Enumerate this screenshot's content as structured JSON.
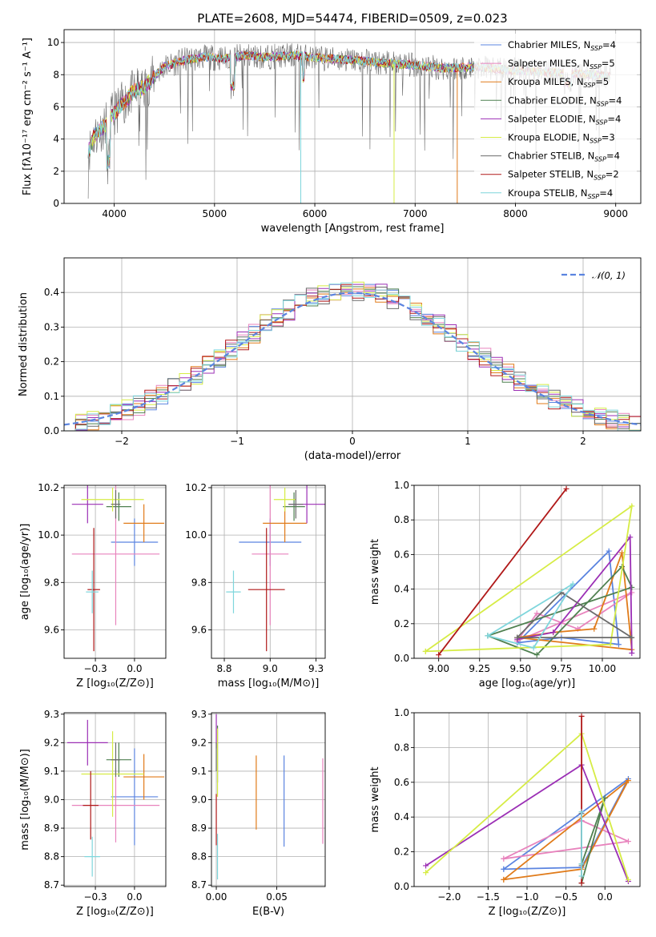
{
  "colors": {
    "Chabrier MILES": "#5b84e0",
    "Salpeter MILES": "#e883bd",
    "Kroupa MILES": "#e07b1a",
    "Chabrier ELODIE": "#4f8050",
    "Salpeter ELODIE": "#9b2fb5",
    "Kroupa ELODIE": "#d6ec45",
    "Chabrier STELIB": "#6b6b6b",
    "Salpeter STELIB": "#b01818",
    "Kroupa STELIB": "#7fd6dc",
    "normal": "#5b84e0"
  },
  "chart_data": [
    {
      "id": "spectrum",
      "type": "line",
      "title": "PLATE=2608, MJD=54474, FIBERID=0509, z=0.023",
      "xlabel": "wavelength [Angstrom, rest frame]",
      "ylabel": "Flux [fλ10⁻¹⁷ erg cm⁻² s⁻¹ A⁻¹]",
      "xlim": [
        3500,
        9250
      ],
      "ylim": [
        0,
        10.8
      ],
      "xticks": [
        4000,
        5000,
        6000,
        7000,
        8000,
        9000
      ],
      "yticks": [
        0,
        2,
        4,
        6,
        8,
        10
      ],
      "continuum": {
        "x": [
          3750,
          3800,
          3900,
          4000,
          4100,
          4200,
          4300,
          4400,
          4500,
          4700,
          4900,
          5100,
          5300,
          5500,
          5800,
          6100,
          6400,
          6700,
          7000,
          7300,
          7600,
          7900,
          8200,
          8500,
          8800,
          8950
        ],
        "y": [
          3.3,
          4.2,
          4.8,
          5.6,
          6.3,
          7.0,
          7.2,
          7.9,
          8.5,
          8.9,
          9.1,
          9.0,
          9.2,
          9.1,
          9.2,
          9.0,
          8.9,
          8.7,
          8.6,
          8.4,
          8.5,
          8.3,
          8.2,
          8.1,
          8.0,
          7.9
        ]
      },
      "legend_position": "upper right",
      "series": [
        {
          "name": "Chabrier MILES",
          "nssp": "4"
        },
        {
          "name": "Salpeter MILES",
          "nssp": "5"
        },
        {
          "name": "Kroupa MILES",
          "nssp": "5"
        },
        {
          "name": "Chabrier ELODIE",
          "nssp": "4"
        },
        {
          "name": "Salpeter ELODIE",
          "nssp": "4"
        },
        {
          "name": "Kroupa ELODIE",
          "nssp": "3"
        },
        {
          "name": "Chabrier STELIB",
          "nssp": "4"
        },
        {
          "name": "Salpeter STELIB",
          "nssp": "2"
        },
        {
          "name": "Kroupa STELIB",
          "nssp": "4"
        }
      ]
    },
    {
      "id": "residuals",
      "type": "bar",
      "xlabel": "(data-model)/error",
      "ylabel": "Normed distribution",
      "xlim": [
        -2.5,
        2.5
      ],
      "ylim": [
        0,
        0.5
      ],
      "xticks": [
        -2,
        -1,
        0,
        1,
        2
      ],
      "yticks": [
        0.0,
        0.1,
        0.2,
        0.3,
        0.4
      ],
      "bin_width": 0.1,
      "legend": "𝒩(0, 1)"
    },
    {
      "id": "age-vs-Z",
      "type": "scatter",
      "xlabel": "Z [log₁₀(Z/Z⊙)]",
      "ylabel": "age  [log₁₀(age/yr)]",
      "xlim": [
        -0.45,
        0.2
      ],
      "ylim": [
        9.48,
        10.21
      ],
      "xticks": [
        -0.25,
        0.0
      ],
      "yticks": [
        9.6,
        9.8,
        10.0,
        10.2
      ],
      "points": [
        {
          "s": "Chabrier MILES",
          "x": 0.0,
          "xerr": 0.15,
          "y": 9.97,
          "yerr": 0.1
        },
        {
          "s": "Salpeter MILES",
          "x": -0.12,
          "xerr": 0.28,
          "y": 9.92,
          "yerr": 0.3
        },
        {
          "s": "Kroupa MILES",
          "x": 0.06,
          "xerr": 0.13,
          "y": 10.05,
          "yerr": 0.08
        },
        {
          "s": "Chabrier ELODIE",
          "x": -0.1,
          "xerr": 0.08,
          "y": 10.12,
          "yerr": 0.06
        },
        {
          "s": "Salpeter ELODIE",
          "x": -0.3,
          "xerr": 0.1,
          "y": 10.13,
          "yerr": 0.08
        },
        {
          "s": "Kroupa ELODIE",
          "x": -0.14,
          "xerr": 0.2,
          "y": 10.15,
          "yerr": 0.05
        },
        {
          "s": "Chabrier STELIB",
          "x": -0.12,
          "xerr": 0.03,
          "y": 10.13,
          "yerr": 0.06
        },
        {
          "s": "Salpeter STELIB",
          "x": -0.26,
          "xerr": 0.04,
          "y": 9.77,
          "yerr": 0.26
        },
        {
          "s": "Kroupa STELIB",
          "x": -0.27,
          "xerr": 0.04,
          "y": 9.76,
          "yerr": 0.09
        }
      ]
    },
    {
      "id": "age-vs-mass",
      "type": "scatter",
      "xlabel": "mass [log₁₀(M/M⊙)]",
      "xlim": [
        8.68,
        9.3
      ],
      "ylim": [
        9.48,
        10.21
      ],
      "xticks": [
        8.75,
        9.0,
        9.25
      ],
      "yticks": [
        9.6,
        9.8,
        10.0,
        10.2
      ],
      "points": [
        {
          "s": "Chabrier MILES",
          "x": 9.0,
          "xerr": 0.17,
          "y": 9.97,
          "yerr": 0.1
        },
        {
          "s": "Salpeter MILES",
          "x": 9.0,
          "xerr": 0.1,
          "y": 9.92,
          "yerr": 0.3
        },
        {
          "s": "Kroupa MILES",
          "x": 9.08,
          "xerr": 0.12,
          "y": 10.05,
          "yerr": 0.08
        },
        {
          "s": "Chabrier ELODIE",
          "x": 9.13,
          "xerr": 0.06,
          "y": 10.12,
          "yerr": 0.06
        },
        {
          "s": "Salpeter ELODIE",
          "x": 9.2,
          "xerr": 0.1,
          "y": 10.13,
          "yerr": 0.08
        },
        {
          "s": "Kroupa ELODIE",
          "x": 9.08,
          "xerr": 0.06,
          "y": 10.15,
          "yerr": 0.05
        },
        {
          "s": "Chabrier STELIB",
          "x": 9.14,
          "xerr": 0.04,
          "y": 10.13,
          "yerr": 0.06
        },
        {
          "s": "Salpeter STELIB",
          "x": 8.98,
          "xerr": 0.1,
          "y": 9.77,
          "yerr": 0.26
        },
        {
          "s": "Kroupa STELIB",
          "x": 8.8,
          "xerr": 0.04,
          "y": 9.76,
          "yerr": 0.09
        }
      ]
    },
    {
      "id": "weight-vs-age",
      "type": "line",
      "xlabel": "age  [log₁₀(age/yr)]",
      "ylabel": "mass weight",
      "xlim": [
        8.85,
        10.23
      ],
      "ylim": [
        0,
        1
      ],
      "xticks": [
        9.0,
        9.25,
        9.5,
        9.75,
        10.0
      ],
      "yticks": [
        0.0,
        0.2,
        0.4,
        0.6,
        0.8,
        1.0
      ],
      "series": [
        {
          "name": "Chabrier MILES",
          "x": [
            9.48,
            9.75,
            10.1,
            10.04,
            9.48
          ],
          "y": [
            0.09,
            0.12,
            0.08,
            0.62,
            0.09
          ]
        },
        {
          "name": "Salpeter MILES",
          "x": [
            9.48,
            9.6,
            9.85,
            10.18,
            9.48
          ],
          "y": [
            0.1,
            0.26,
            0.17,
            0.38,
            0.1
          ]
        },
        {
          "name": "Kroupa MILES",
          "x": [
            9.48,
            9.7,
            9.95,
            10.12,
            10.18,
            9.48
          ],
          "y": [
            0.12,
            0.15,
            0.17,
            0.61,
            0.05,
            0.12
          ]
        },
        {
          "name": "Chabrier ELODIE",
          "x": [
            9.3,
            9.6,
            10.12,
            10.18,
            9.3
          ],
          "y": [
            0.13,
            0.02,
            0.53,
            0.41,
            0.13
          ]
        },
        {
          "name": "Salpeter ELODIE",
          "x": [
            9.48,
            9.7,
            10.17,
            10.18
          ],
          "y": [
            0.11,
            0.15,
            0.7,
            0.03
          ]
        },
        {
          "name": "Kroupa ELODIE",
          "x": [
            8.92,
            10.05,
            10.18,
            8.92
          ],
          "y": [
            0.04,
            0.08,
            0.88,
            0.04
          ]
        },
        {
          "name": "Chabrier STELIB",
          "x": [
            9.48,
            9.75,
            10.18,
            9.48
          ],
          "y": [
            0.12,
            0.38,
            0.12,
            0.12
          ]
        },
        {
          "name": "Salpeter STELIB",
          "x": [
            9.0,
            9.78
          ],
          "y": [
            0.02,
            0.98
          ]
        },
        {
          "name": "Kroupa STELIB",
          "x": [
            9.3,
            9.58,
            9.82,
            9.3
          ],
          "y": [
            0.13,
            0.06,
            0.43,
            0.13
          ]
        }
      ]
    },
    {
      "id": "mass-vs-Z",
      "type": "scatter",
      "xlabel": "Z [log₁₀(Z/Z⊙)]",
      "ylabel": "mass [log₁₀(M/M⊙)]",
      "xlim": [
        -0.45,
        0.2
      ],
      "ylim": [
        8.695,
        9.305
      ],
      "xticks": [
        -0.25,
        0.0
      ],
      "yticks": [
        8.7,
        8.8,
        8.9,
        9.0,
        9.1,
        9.2,
        9.3
      ],
      "points": [
        {
          "s": "Chabrier MILES",
          "x": 0.0,
          "xerr": 0.15,
          "y": 9.01,
          "yerr": 0.17
        },
        {
          "s": "Salpeter MILES",
          "x": -0.12,
          "xerr": 0.28,
          "y": 8.98,
          "yerr": 0.13
        },
        {
          "s": "Kroupa MILES",
          "x": 0.06,
          "xerr": 0.13,
          "y": 9.08,
          "yerr": 0.08
        },
        {
          "s": "Chabrier ELODIE",
          "x": -0.1,
          "xerr": 0.08,
          "y": 9.14,
          "yerr": 0.06
        },
        {
          "s": "Salpeter ELODIE",
          "x": -0.3,
          "xerr": 0.13,
          "y": 9.2,
          "yerr": 0.08
        },
        {
          "s": "Kroupa ELODIE",
          "x": -0.14,
          "xerr": 0.2,
          "y": 9.09,
          "yerr": 0.15
        },
        {
          "s": "Chabrier STELIB",
          "x": -0.12,
          "xerr": 0.03,
          "y": 9.14,
          "yerr": 0.06
        },
        {
          "s": "Salpeter STELIB",
          "x": -0.28,
          "xerr": 0.05,
          "y": 8.98,
          "yerr": 0.12
        },
        {
          "s": "Kroupa STELIB",
          "x": -0.27,
          "xerr": 0.05,
          "y": 8.8,
          "yerr": 0.07
        }
      ]
    },
    {
      "id": "mass-vs-EBV",
      "type": "scatter",
      "xlabel": "E(B-V)",
      "xlim": [
        -0.004,
        0.09
      ],
      "ylim": [
        8.695,
        9.305
      ],
      "xticks": [
        0.0,
        0.05
      ],
      "yticks": [
        8.7,
        8.8,
        8.9,
        9.0,
        9.1,
        9.2,
        9.3
      ],
      "points": [
        {
          "s": "Chabrier MILES",
          "x": 0.056,
          "y": 8.995,
          "yerr": 0.16
        },
        {
          "s": "Salpeter MILES",
          "x": 0.088,
          "y": 8.995,
          "yerr": 0.15
        },
        {
          "s": "Kroupa MILES",
          "x": 0.033,
          "y": 9.025,
          "yerr": 0.13
        },
        {
          "s": "Chabrier ELODIE",
          "x": 0.001,
          "y": 9.16,
          "yerr": 0.1
        },
        {
          "s": "Salpeter ELODIE",
          "x": 0.0,
          "y": 9.24,
          "yerr": 0.06
        },
        {
          "s": "Kroupa ELODIE",
          "x": 0.001,
          "y": 9.13,
          "yerr": 0.12
        },
        {
          "s": "Chabrier STELIB",
          "x": 0.0,
          "y": 9.15,
          "yerr": 0.05
        },
        {
          "s": "Salpeter STELIB",
          "x": 0.0,
          "y": 8.93,
          "yerr": 0.09
        },
        {
          "s": "Kroupa STELIB",
          "x": 0.001,
          "y": 8.8,
          "yerr": 0.08
        }
      ]
    },
    {
      "id": "weight-vs-Z",
      "type": "line",
      "xlabel": "Z [log₁₀(Z/Z⊙)]",
      "ylabel": "mass weight",
      "xlim": [
        -2.45,
        0.45
      ],
      "ylim": [
        0,
        1
      ],
      "xticks": [
        -2.0,
        -1.5,
        -1.0,
        -0.5,
        0.0
      ],
      "yticks": [
        0.0,
        0.2,
        0.4,
        0.6,
        0.8,
        1.0
      ],
      "series": [
        {
          "name": "Chabrier MILES",
          "x": [
            -1.3,
            -0.3,
            0.3,
            -1.3
          ],
          "y": [
            0.1,
            0.11,
            0.62,
            0.1
          ]
        },
        {
          "name": "Salpeter MILES",
          "x": [
            -1.3,
            -0.3,
            0.3,
            -1.3
          ],
          "y": [
            0.16,
            0.38,
            0.26,
            0.16
          ]
        },
        {
          "name": "Kroupa MILES",
          "x": [
            -1.3,
            -0.3,
            0.3,
            -1.3
          ],
          "y": [
            0.04,
            0.1,
            0.61,
            0.04
          ]
        },
        {
          "name": "Chabrier ELODIE",
          "x": [
            -0.3,
            0.0,
            -0.3
          ],
          "y": [
            0.13,
            0.51,
            0.02
          ]
        },
        {
          "name": "Salpeter ELODIE",
          "x": [
            -2.3,
            -0.3,
            0.3
          ],
          "y": [
            0.12,
            0.7,
            0.03
          ]
        },
        {
          "name": "Kroupa ELODIE",
          "x": [
            -2.3,
            -0.3,
            0.3
          ],
          "y": [
            0.08,
            0.88,
            0.04
          ]
        },
        {
          "name": "Chabrier STELIB",
          "x": [
            -0.3,
            -0.3
          ],
          "y": [
            0.12,
            0.42
          ]
        },
        {
          "name": "Salpeter STELIB",
          "x": [
            -0.3,
            -0.3
          ],
          "y": [
            0.02,
            0.98
          ]
        },
        {
          "name": "Kroupa STELIB",
          "x": [
            -0.3,
            -0.3,
            -0.3
          ],
          "y": [
            0.06,
            0.43,
            0.13
          ]
        }
      ]
    }
  ]
}
